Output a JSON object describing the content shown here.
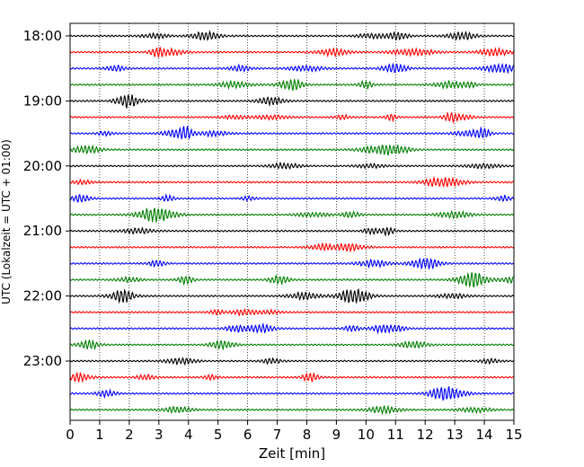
{
  "chart_data": {
    "type": "line",
    "subtype": "helicorder",
    "xlabel": "Zeit  [min]",
    "ylabel": "UTC (Lokalzeit = UTC + 01:00)",
    "xlim": [
      0,
      15
    ],
    "x_ticks": [
      "0",
      "1",
      "2",
      "3",
      "4",
      "5",
      "6",
      "7",
      "8",
      "9",
      "10",
      "11",
      "12",
      "13",
      "14",
      "15"
    ],
    "y_ticks": [
      "18:00",
      "19:00",
      "20:00",
      "21:00",
      "22:00",
      "23:00"
    ],
    "traces_per_hour": 4,
    "trace_minutes": 15,
    "trace_count": 24,
    "vertical_grid": "dotted, every 1 min",
    "trace_colors": [
      "#000000",
      "#ff0000",
      "#0000ff",
      "#007f00"
    ]
  }
}
